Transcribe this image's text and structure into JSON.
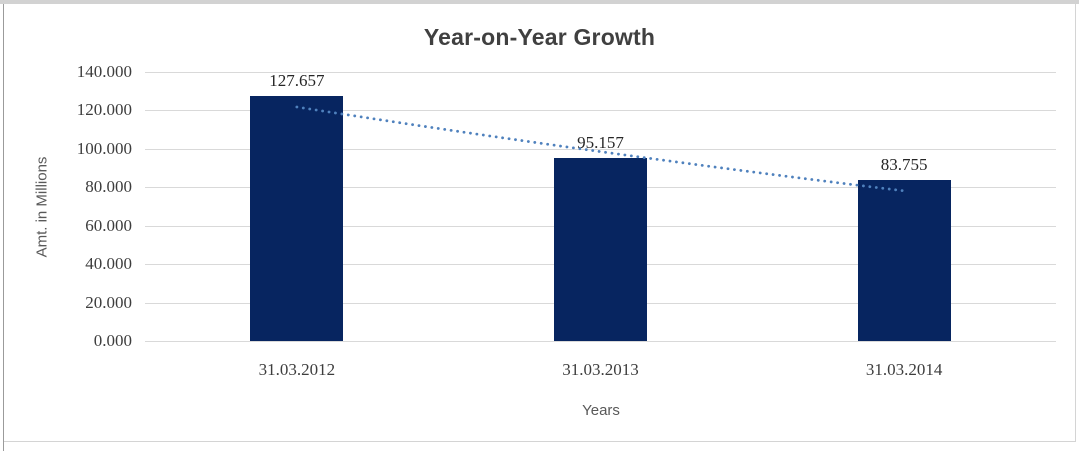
{
  "chart_data": {
    "type": "bar",
    "title": "Year-on-Year Growth",
    "ylabel": "Amt. in Millions",
    "xlabel": "Years",
    "categories": [
      "31.03.2012",
      "31.03.2013",
      "31.03.2014"
    ],
    "values": [
      127.657,
      95.157,
      83.755
    ],
    "value_labels": [
      "127.657",
      "95.157",
      "83.755"
    ],
    "yticks": [
      "0.000",
      "20.000",
      "40.000",
      "60.000",
      "80.000",
      "100.000",
      "120.000",
      "140.000"
    ],
    "ylim": [
      0,
      140
    ],
    "ytick_step": 20,
    "grid": true,
    "legend": false,
    "bar_color": "#072560",
    "gridline_color": "#d9d9d9",
    "title_color": "#404040",
    "trendline": {
      "style": "dotted",
      "color": "#4F81BD",
      "fitted_values": [
        121.8,
        98.6,
        78.2
      ]
    }
  }
}
